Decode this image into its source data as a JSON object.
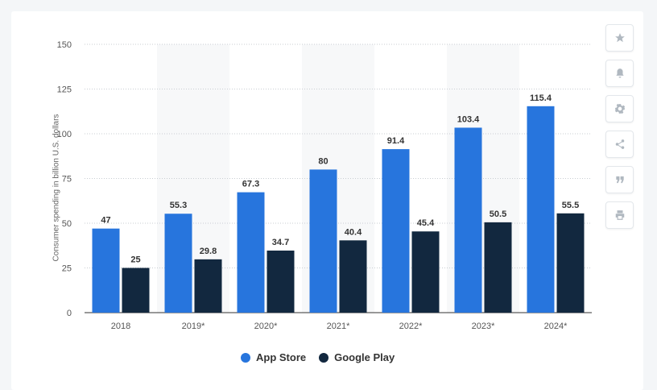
{
  "chart_data": {
    "type": "bar",
    "ylabel": "Consumer spending in billion U.S. dollars",
    "ylim": [
      0,
      150
    ],
    "yticks": [
      0,
      25,
      50,
      75,
      100,
      125,
      150
    ],
    "grid": true,
    "legend_position": "bottom",
    "categories": [
      "2018",
      "2019*",
      "2020*",
      "2021*",
      "2022*",
      "2023*",
      "2024*"
    ],
    "series": [
      {
        "name": "App Store",
        "color": "#2775dd",
        "values": [
          47,
          55.3,
          67.3,
          80,
          91.4,
          103.4,
          115.4
        ]
      },
      {
        "name": "Google Play",
        "color": "#12283f",
        "values": [
          25,
          29.8,
          34.7,
          40.4,
          45.4,
          50.5,
          55.5
        ]
      }
    ]
  },
  "legend": {
    "items": [
      {
        "label": "App Store",
        "color": "#2775dd"
      },
      {
        "label": "Google Play",
        "color": "#12283f"
      }
    ]
  },
  "tools": [
    {
      "name": "star-icon"
    },
    {
      "name": "bell-icon"
    },
    {
      "name": "gear-icon"
    },
    {
      "name": "share-icon"
    },
    {
      "name": "quote-icon"
    },
    {
      "name": "print-icon"
    }
  ]
}
